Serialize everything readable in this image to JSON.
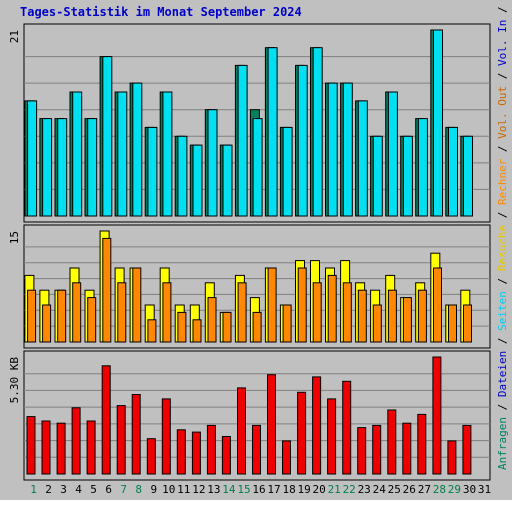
{
  "title": "Tages-Statistik im Monat September 2024",
  "colors": {
    "background": "#C0C0C0",
    "title": "#0000CC",
    "anfragen": "#008060",
    "dateien": "#00E0F0",
    "seiten": "#00E0F0",
    "besuche": "#FFFF00",
    "rechner": "#FF8800",
    "volumen": "#EE0000",
    "weekend_label": "#00804A"
  },
  "right_labels": [
    {
      "text": "Anfragen",
      "color": "#008060"
    },
    {
      "text": " / ",
      "color": "#000000"
    },
    {
      "text": "Dateien",
      "color": "#0000CC"
    },
    {
      "text": " / ",
      "color": "#000000"
    },
    {
      "text": "Seiten",
      "color": "#00CCEE"
    },
    {
      "text": " / ",
      "color": "#000000"
    },
    {
      "text": "Besuche",
      "color": "#E6C800"
    },
    {
      "text": " / ",
      "color": "#000000"
    },
    {
      "text": "Rechner",
      "color": "#FF8800"
    },
    {
      "text": " / ",
      "color": "#000000"
    },
    {
      "text": "Vol. Out",
      "color": "#CC6600"
    },
    {
      "text": " / ",
      "color": "#000000"
    },
    {
      "text": "Vol. In",
      "color": "#0000CC"
    },
    {
      "text": " / ",
      "color": "#000000"
    },
    {
      "text": "Volumen",
      "color": "#EE0000"
    }
  ],
  "chart_data": {
    "type": "bar",
    "categories": [
      "1",
      "2",
      "3",
      "4",
      "5",
      "6",
      "7",
      "8",
      "9",
      "10",
      "11",
      "12",
      "13",
      "14",
      "15",
      "16",
      "17",
      "18",
      "19",
      "20",
      "21",
      "22",
      "23",
      "24",
      "25",
      "26",
      "27",
      "28",
      "29",
      "30"
    ],
    "x_all_labels": [
      "1",
      "2",
      "3",
      "4",
      "5",
      "6",
      "7",
      "8",
      "9",
      "10",
      "11",
      "12",
      "13",
      "14",
      "15",
      "16",
      "17",
      "18",
      "19",
      "20",
      "21",
      "22",
      "23",
      "24",
      "25",
      "26",
      "27",
      "28",
      "29",
      "30",
      "31"
    ],
    "weekend_days": [
      "1",
      "7",
      "8",
      "14",
      "15",
      "21",
      "22",
      "28",
      "29"
    ],
    "panels": [
      {
        "name": "requests",
        "ymax_label": "21",
        "ymax": 21,
        "series": [
          {
            "name": "Anfragen",
            "values": [
              13,
              11,
              11,
              14,
              11,
              18,
              14,
              15,
              10,
              14,
              9,
              8,
              12,
              8,
              17,
              12,
              19,
              10,
              17,
              19,
              15,
              15,
              13,
              9,
              14,
              9,
              11,
              21,
              10,
              9
            ]
          },
          {
            "name": "Dateien",
            "values": [
              13,
              11,
              11,
              14,
              11,
              18,
              14,
              15,
              10,
              14,
              9,
              8,
              12,
              8,
              17,
              11,
              19,
              10,
              17,
              19,
              15,
              15,
              13,
              9,
              14,
              9,
              11,
              21,
              10,
              9
            ]
          }
        ]
      },
      {
        "name": "visits",
        "ymax_label": "15",
        "ymax": 15,
        "series": [
          {
            "name": "Besuche",
            "values": [
              9,
              7,
              7,
              10,
              7,
              15,
              10,
              10,
              5,
              10,
              5,
              5,
              8,
              4,
              9,
              6,
              10,
              5,
              11,
              11,
              10,
              11,
              8,
              7,
              9,
              6,
              8,
              12,
              5,
              7
            ]
          },
          {
            "name": "Rechner",
            "values": [
              7,
              5,
              7,
              8,
              6,
              14,
              8,
              10,
              3,
              8,
              4,
              3,
              6,
              4,
              8,
              4,
              10,
              5,
              10,
              8,
              9,
              8,
              7,
              5,
              7,
              6,
              7,
              10,
              5,
              5
            ]
          }
        ]
      },
      {
        "name": "volume",
        "ymax_label": "5.30 KB",
        "ymax": 5.3,
        "series": [
          {
            "name": "Volumen",
            "values": [
              2.6,
              2.4,
              2.3,
              3.0,
              2.4,
              4.9,
              3.1,
              3.6,
              1.6,
              3.4,
              2.0,
              1.9,
              2.2,
              1.7,
              3.9,
              2.2,
              4.5,
              1.5,
              3.7,
              4.4,
              3.4,
              4.2,
              2.1,
              2.2,
              2.9,
              2.3,
              2.7,
              5.3,
              1.5,
              2.2
            ]
          }
        ]
      }
    ]
  }
}
